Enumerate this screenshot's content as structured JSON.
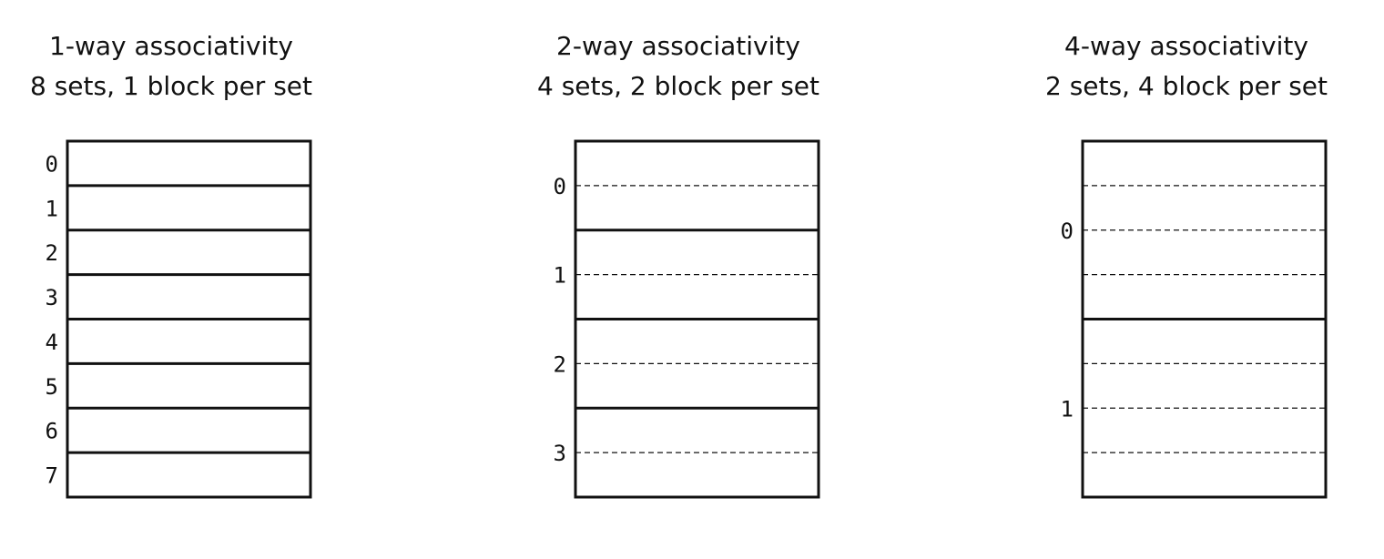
{
  "diagram": {
    "panels": [
      {
        "title_line1": "1-way associativity",
        "title_line2": "8 sets, 1 block per set",
        "sets": 8,
        "blocks_per_set": 1,
        "set_labels": [
          "0",
          "1",
          "2",
          "3",
          "4",
          "5",
          "6",
          "7"
        ]
      },
      {
        "title_line1": "2-way associativity",
        "title_line2": "4 sets, 2 block per set",
        "sets": 4,
        "blocks_per_set": 2,
        "set_labels": [
          "0",
          "1",
          "2",
          "3"
        ]
      },
      {
        "title_line1": "4-way associativity",
        "title_line2": "2 sets, 4 block per set",
        "sets": 2,
        "blocks_per_set": 4,
        "set_labels": [
          "0",
          "1"
        ]
      }
    ],
    "colors": {
      "line": "#111111",
      "background": "#ffffff"
    }
  }
}
